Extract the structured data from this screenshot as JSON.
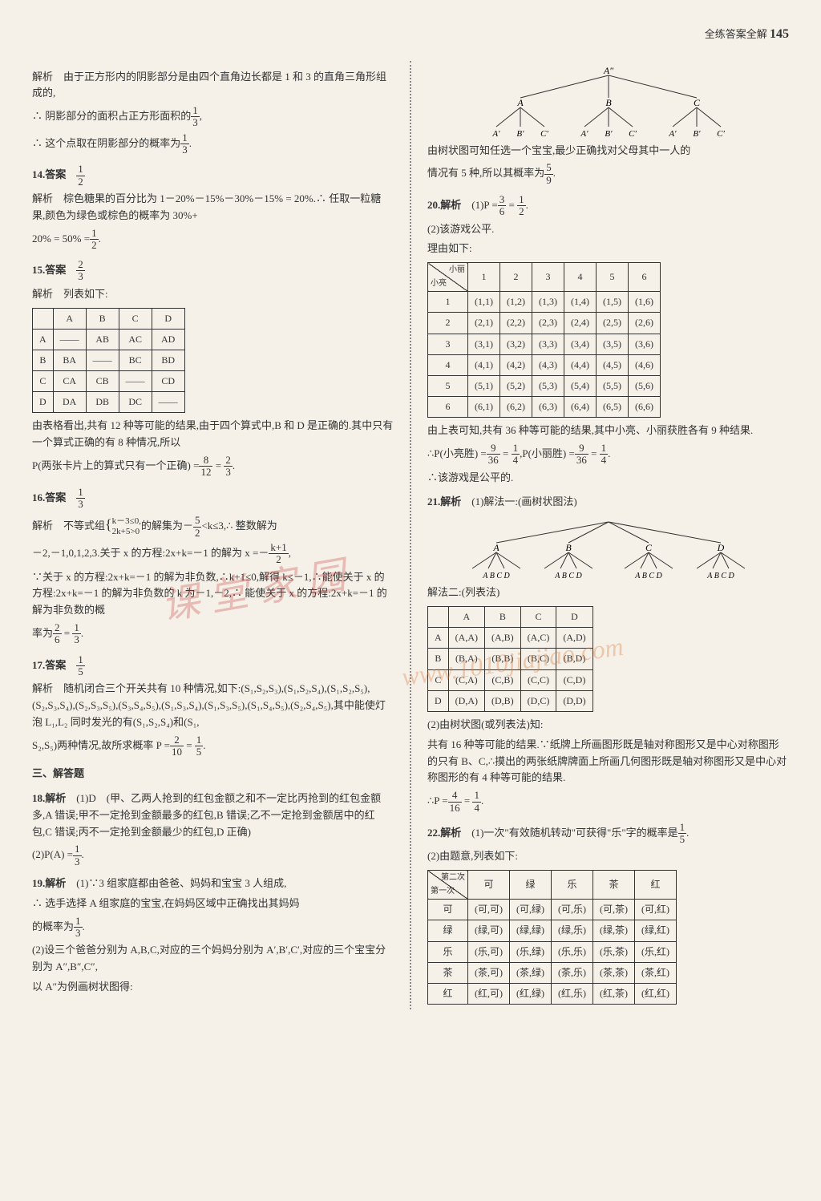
{
  "header": {
    "label": "全练答案全解",
    "page": "145"
  },
  "left": {
    "q13": {
      "p1": "解析　由于正方形内的阴影部分是由四个直角边长都是 1 和 3 的直角三角形组成的,",
      "p2a": "∴ 阴影部分的面积占正方形面积的",
      "f1n": "1",
      "f1d": "3",
      "p2b": ",",
      "p3a": "∴ 这个点取在阴影部分的概率为",
      "f2n": "1",
      "f2d": "3",
      "p3b": "."
    },
    "q14": {
      "label": "14.答案",
      "fn": "1",
      "fd": "2",
      "p1": "解析　棕色糖果的百分比为 1－20%－15%－30%－15% = 20%.∴ 任取一粒糖果,颜色为绿色或棕色的概率为 30%+",
      "p2a": "20% = 50% =",
      "f2n": "1",
      "f2d": "2",
      "p2b": "."
    },
    "q15": {
      "label": "15.答案",
      "fn": "2",
      "fd": "3",
      "p1": "解析　列表如下:",
      "table": {
        "headers": [
          "",
          "A",
          "B",
          "C",
          "D"
        ],
        "rows": [
          [
            "A",
            "——",
            "AB",
            "AC",
            "AD"
          ],
          [
            "B",
            "BA",
            "——",
            "BC",
            "BD"
          ],
          [
            "C",
            "CA",
            "CB",
            "——",
            "CD"
          ],
          [
            "D",
            "DA",
            "DB",
            "DC",
            "——"
          ]
        ]
      },
      "p2": "由表格看出,共有 12 种等可能的结果,由于四个算式中,B 和 D 是正确的.其中只有一个算式正确的有 8 种情况,所以",
      "p3a": "P(两张卡片上的算式只有一个正确) =",
      "f3n": "8",
      "f3d": "12",
      "eq": " = ",
      "f4n": "2",
      "f4d": "3",
      "p3b": "."
    },
    "q16": {
      "label": "16.答案",
      "fn": "1",
      "fd": "3",
      "p1a": "解析　不等式组",
      "bracket1": "k－3≤0,",
      "bracket2": "2k+5>0",
      "p1b": "的解集为－",
      "f1n": "5",
      "f1d": "2",
      "p1c": "<k≤3,∴ 整数解为",
      "p2a": "－2,－1,0,1,2,3.关于 x 的方程:2x+k=－1 的解为 x =－",
      "f2n": "k+1",
      "f2d": "2",
      "p2b": ",",
      "p3": "∵关于 x 的方程:2x+k=－1 的解为非负数,∴k+1≤0,解得 k≤－1,∴能使关于 x 的方程:2x+k=－1 的解为非负数的 k 为－1,－2,∴ 能使关于 x 的方程:2x+k=－1 的解为非负数的概",
      "p4a": "率为",
      "f3n": "2",
      "f3d": "6",
      "eq": " = ",
      "f4n": "1",
      "f4d": "3",
      "p4b": "."
    },
    "q17": {
      "label": "17.答案",
      "fn": "1",
      "fd": "5",
      "p1": "解析　随机闭合三个开关共有 10 种情况,如下:(S₁,S₂,S₃),(S₁,S₂,S₄),(S₁,S₂,S₅),(S₂,S₃,S₄),(S₂,S₃,S₅),(S₃,S₄,S₅),(S₁,S₃,S₄),(S₁,S₃,S₅),(S₁,S₄,S₅),(S₂,S₄,S₅),其中能使灯泡 L₁,L₂ 同时发光的有(S₁,S₂,S₄)和(S₁,",
      "p2a": "S₂,S₅)两种情况,故所求概率 P =",
      "f2n": "2",
      "f2d": "10",
      "eq": " = ",
      "f3n": "1",
      "f3d": "5",
      "p2b": "."
    },
    "sec3": "三、解答题",
    "q18": {
      "label": "18.解析",
      "p1": "　(1)D　(甲、乙两人抢到的红包金额之和不一定比丙抢到的红包金额多,A 错误;甲不一定抢到金额最多的红包,B 错误;乙不一定抢到金额居中的红包,C 错误;丙不一定抢到金额最少的红包,D 正确)",
      "p2a": "(2)P(A) =",
      "fn": "1",
      "fd": "3",
      "p2b": "."
    },
    "q19": {
      "label": "19.解析",
      "p1": "　(1)∵3 组家庭都由爸爸、妈妈和宝宝 3 人组成,",
      "p2": "∴ 选手选择 A 组家庭的宝宝,在妈妈区域中正确找出其妈妈",
      "p3a": "的概率为",
      "fn": "1",
      "fd": "3",
      "p3b": ".",
      "p4": "(2)设三个爸爸分别为 A,B,C,对应的三个妈妈分别为 A′,B′,C′,对应的三个宝宝分别为 A″,B″,C″,",
      "p5": "以 A″为例画树状图得:"
    }
  },
  "right": {
    "tree1": {
      "root": "A″",
      "mid": [
        "A",
        "B",
        "C"
      ],
      "leaves": [
        "A′",
        "B′",
        "C′",
        "A′",
        "B′",
        "C′",
        "A′",
        "B′",
        "C′"
      ]
    },
    "tree1_text": {
      "p1": "由树状图可知任选一个宝宝,最少正确找对父母其中一人的",
      "p2a": "情况有 5 种,所以其概率为",
      "fn": "5",
      "fd": "9",
      "p2b": "."
    },
    "q20": {
      "label": "20.解析",
      "p1a": "　(1)P =",
      "f1n": "3",
      "f1d": "6",
      "eq": " = ",
      "f2n": "1",
      "f2d": "2",
      "p1b": ".",
      "p2": "(2)该游戏公平.",
      "p3": "理由如下:",
      "table": {
        "diag_tl": "小丽",
        "diag_br": "小亮",
        "cols": [
          "1",
          "2",
          "3",
          "4",
          "5",
          "6"
        ],
        "rows": [
          [
            "1",
            "(1,1)",
            "(1,2)",
            "(1,3)",
            "(1,4)",
            "(1,5)",
            "(1,6)"
          ],
          [
            "2",
            "(2,1)",
            "(2,2)",
            "(2,3)",
            "(2,4)",
            "(2,5)",
            "(2,6)"
          ],
          [
            "3",
            "(3,1)",
            "(3,2)",
            "(3,3)",
            "(3,4)",
            "(3,5)",
            "(3,6)"
          ],
          [
            "4",
            "(4,1)",
            "(4,2)",
            "(4,3)",
            "(4,4)",
            "(4,5)",
            "(4,6)"
          ],
          [
            "5",
            "(5,1)",
            "(5,2)",
            "(5,3)",
            "(5,4)",
            "(5,5)",
            "(5,6)"
          ],
          [
            "6",
            "(6,1)",
            "(6,2)",
            "(6,3)",
            "(6,4)",
            "(6,5)",
            "(6,6)"
          ]
        ]
      },
      "p4": "由上表可知,共有 36 种等可能的结果,其中小亮、小丽获胜各有 9 种结果.",
      "p5a": "∴P(小亮胜) =",
      "f3n": "9",
      "f3d": "36",
      "eq1": " = ",
      "f4n": "1",
      "f4d": "4",
      "mid": ",P(小丽胜) =",
      "f5n": "9",
      "f5d": "36",
      "eq2": " = ",
      "f6n": "1",
      "f6d": "4",
      "p5b": ".",
      "p6": "∴该游戏是公平的."
    },
    "q21": {
      "label": "21.解析",
      "p1": "　(1)解法一:(画树状图法)",
      "tree": {
        "mid": [
          "A",
          "B",
          "C",
          "D"
        ],
        "leaves": "A B C D"
      },
      "p2": "解法二:(列表法)",
      "table2": {
        "cols": [
          "",
          "A",
          "B",
          "C",
          "D"
        ],
        "rows": [
          [
            "A",
            "(A,A)",
            "(A,B)",
            "(A,C)",
            "(A,D)"
          ],
          [
            "B",
            "(B,A)",
            "(B,B)",
            "(B,C)",
            "(B,D)"
          ],
          [
            "C",
            "(C,A)",
            "(C,B)",
            "(C,C)",
            "(C,D)"
          ],
          [
            "D",
            "(D,A)",
            "(D,B)",
            "(D,C)",
            "(D,D)"
          ]
        ]
      },
      "p3": "(2)由树状图(或列表法)知:",
      "p4": "共有 16 种等可能的结果.∵纸牌上所画图形既是轴对称图形又是中心对称图形的只有 B、C,∴摸出的两张纸牌牌面上所画几何图形既是轴对称图形又是中心对称图形的有 4 种等可能的结果.",
      "p5a": "∴P =",
      "fn": "4",
      "fd": "16",
      "eq": " = ",
      "f2n": "1",
      "f2d": "4",
      "p5b": "."
    },
    "q22": {
      "label": "22.解析",
      "p1a": "　(1)一次\"有效随机转动\"可获得\"乐\"字的概率是",
      "fn": "1",
      "fd": "5",
      "p1b": ".",
      "p2": "(2)由题意,列表如下:",
      "table": {
        "diag_tl": "第二次",
        "diag_br": "第一次",
        "cols": [
          "可",
          "绿",
          "乐",
          "茶",
          "红"
        ],
        "rows": [
          [
            "可",
            "(可,可)",
            "(可,绿)",
            "(可,乐)",
            "(可,茶)",
            "(可,红)"
          ],
          [
            "绿",
            "(绿,可)",
            "(绿,绿)",
            "(绿,乐)",
            "(绿,茶)",
            "(绿,红)"
          ],
          [
            "乐",
            "(乐,可)",
            "(乐,绿)",
            "(乐,乐)",
            "(乐,茶)",
            "(乐,红)"
          ],
          [
            "茶",
            "(茶,可)",
            "(茶,绿)",
            "(茶,乐)",
            "(茶,茶)",
            "(茶,红)"
          ],
          [
            "红",
            "(红,可)",
            "(红,绿)",
            "(红,乐)",
            "(红,茶)",
            "(红,红)"
          ]
        ]
      }
    }
  },
  "watermark1": "课 堂 家 园",
  "watermark2": "www.1010jiajiao.com"
}
